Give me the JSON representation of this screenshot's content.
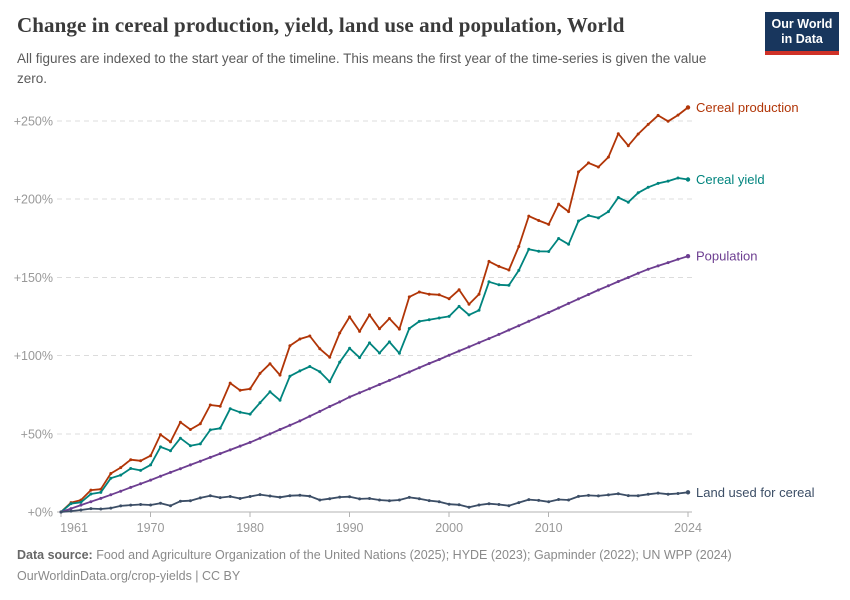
{
  "header": {
    "title": "Change in cereal production, yield, land use and population, World",
    "subtitle": "All figures are indexed to the start year of the timeline. This means the first year of the time-series is given the value zero."
  },
  "logo": {
    "line1": "Our World",
    "line2": "in Data",
    "bg_color": "#18365d",
    "stripe_color": "#cf3127"
  },
  "chart_data": {
    "type": "line",
    "title": "Change in cereal production, yield, land use and population, World",
    "xlabel": "",
    "ylabel": "",
    "xlim": [
      1961,
      2025
    ],
    "ylim": [
      0,
      270
    ],
    "grid": "horizontal-dashed",
    "legend_position": "end-of-line-labels",
    "x_ticks": [
      1961,
      1970,
      1980,
      1990,
      2000,
      2010,
      2024
    ],
    "y_ticks": [
      0,
      50,
      100,
      150,
      200,
      250
    ],
    "y_tick_labels": [
      "+0%",
      "+50%",
      "+100%",
      "+150%",
      "+200%",
      "+250%"
    ],
    "years": [
      1961,
      1962,
      1963,
      1964,
      1965,
      1966,
      1967,
      1968,
      1969,
      1970,
      1971,
      1972,
      1973,
      1974,
      1975,
      1976,
      1977,
      1978,
      1979,
      1980,
      1981,
      1982,
      1983,
      1984,
      1985,
      1986,
      1987,
      1988,
      1989,
      1990,
      1991,
      1992,
      1993,
      1994,
      1995,
      1996,
      1997,
      1998,
      1999,
      2000,
      2001,
      2002,
      2003,
      2004,
      2005,
      2006,
      2007,
      2008,
      2009,
      2010,
      2011,
      2012,
      2013,
      2014,
      2015,
      2016,
      2017,
      2018,
      2019,
      2020,
      2021,
      2022,
      2023,
      2024
    ],
    "series": [
      {
        "name": "Cereal production",
        "color": "#B13507",
        "values": [
          0,
          6,
          7.6,
          14,
          14.6,
          24.6,
          28.4,
          33.4,
          32.7,
          36,
          49.5,
          44.8,
          57.4,
          52.7,
          56.4,
          68.4,
          67.6,
          82.4,
          77.8,
          78.7,
          88.6,
          94.8,
          87.5,
          106.2,
          110.6,
          112.5,
          104.3,
          98.9,
          114.4,
          124.7,
          115.4,
          126,
          117.1,
          123.7,
          116.9,
          137.5,
          140.6,
          139.2,
          138.8,
          136.3,
          142,
          132.8,
          139.2,
          160.2,
          157,
          154.7,
          169.7,
          189.1,
          186.3,
          183.8,
          196.8,
          192,
          217.4,
          223.1,
          220.5,
          226.8,
          241.8,
          234.1,
          241.6,
          247.7,
          253.5,
          249.7,
          253.7,
          258.6
        ]
      },
      {
        "name": "Cereal yield",
        "color": "#00847E",
        "values": [
          0,
          5.4,
          6.2,
          11.5,
          12.5,
          21.6,
          23.6,
          27.8,
          26.6,
          30.1,
          41.6,
          39.2,
          47.2,
          42.4,
          43.5,
          52.5,
          53.5,
          66,
          63.7,
          62.6,
          69.8,
          76.8,
          71.4,
          86.8,
          90.2,
          93,
          89.7,
          83.3,
          95.8,
          104.6,
          98.7,
          108.1,
          101.6,
          108.7,
          101.4,
          117.3,
          121.8,
          122.9,
          124,
          125,
          131.4,
          126,
          128.9,
          147.1,
          145.2,
          144.9,
          154.4,
          167.9,
          166.6,
          166.5,
          174.8,
          171.1,
          186,
          189.5,
          188,
          192,
          201,
          198,
          204,
          207.5,
          210,
          211.5,
          213.5,
          212.5
        ]
      },
      {
        "name": "Population",
        "color": "#6D3E91",
        "values": [
          0,
          2.2,
          4.4,
          6.6,
          8.7,
          11,
          13.3,
          15.7,
          18,
          20.4,
          22.9,
          25.3,
          27.7,
          30.1,
          32.5,
          34.9,
          37.3,
          39.7,
          42.1,
          44.5,
          47.2,
          49.9,
          52.7,
          55.4,
          58.2,
          61.2,
          64.3,
          67.4,
          70.4,
          73.5,
          76.2,
          78.8,
          81.5,
          84.1,
          86.8,
          89.5,
          92.2,
          94.9,
          97.5,
          100.2,
          102.9,
          105.5,
          108.2,
          110.8,
          113.5,
          116.3,
          119.1,
          121.9,
          124.7,
          127.5,
          130.4,
          133.3,
          136.2,
          139,
          141.9,
          144.6,
          147.3,
          149.9,
          152.6,
          155.2,
          157.3,
          159.4,
          161.5,
          163.5
        ]
      },
      {
        "name": "Land used for cereal",
        "color": "#3C4E66",
        "values": [
          0,
          0.6,
          1.3,
          2.2,
          1.9,
          2.5,
          3.9,
          4.4,
          4.8,
          4.5,
          5.6,
          4,
          6.9,
          7.2,
          9,
          10.4,
          9.2,
          9.9,
          8.6,
          9.9,
          11.1,
          10.2,
          9.4,
          10.4,
          10.7,
          10.1,
          7.7,
          8.5,
          9.5,
          9.8,
          8.4,
          8.6,
          7.7,
          7.2,
          7.7,
          9.3,
          8.5,
          7.3,
          6.6,
          5,
          4.6,
          3,
          4.5,
          5.3,
          4.8,
          4,
          6,
          7.9,
          7.4,
          6.5,
          8,
          7.7,
          10,
          10.6,
          10.3,
          10.9,
          11.7,
          10.5,
          10.4,
          11.3,
          12.1,
          11.4,
          11.8,
          12.6
        ]
      }
    ]
  },
  "footer": {
    "source_label": "Data source:",
    "source_text": " Food and Agriculture Organization of the United Nations (2025); HYDE (2023); Gapminder (2022); UN WPP (2024)",
    "note": "OurWorldinData.org/crop-yields | CC BY"
  },
  "colors": {
    "axis_text": "#999999",
    "gridline": "#dcdcdc",
    "axis_line": "#b3b3b3"
  }
}
